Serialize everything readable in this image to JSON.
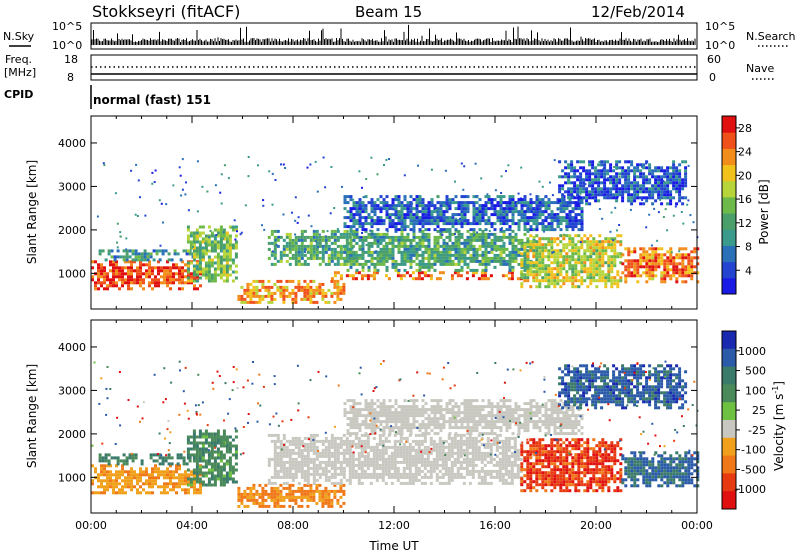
{
  "header": {
    "station": "Stokkseyri (fitACF)",
    "beam": "Beam 15",
    "date": "12/Feb/2014"
  },
  "top_panels": {
    "nsky_label": "N.Sky",
    "nsky_ticks": [
      "10^5",
      "10^0"
    ],
    "nsky_right_ticks": [
      "10^5",
      "10^0"
    ],
    "nsearch_label": "N.Search",
    "freq_label": "Freq.",
    "freq_unit": "[MHz]",
    "freq_ticks": [
      "18",
      "8"
    ],
    "nave_label": "Nave",
    "nave_ticks": [
      "60",
      "0"
    ],
    "cpid_label": "CPID",
    "cpid_value": "normal (fast) 151"
  },
  "chart_data": [
    {
      "type": "heatmap",
      "name": "power",
      "ylabel": "Slant Range [km]",
      "xlabel": "",
      "x_ticks": [
        "00:00",
        "04:00",
        "08:00",
        "12:00",
        "16:00",
        "20:00",
        "00:00"
      ],
      "x_range_hours": [
        0,
        24
      ],
      "y_ticks": [
        "1000",
        "2000",
        "3000",
        "4000"
      ],
      "y_range_km": [
        180,
        4620
      ],
      "colorbar": {
        "label": "Power [dB]",
        "ticks": [
          "4",
          "8",
          "12",
          "16",
          "20",
          "24",
          "28"
        ],
        "range": [
          0,
          30
        ],
        "colors": [
          "#1a1ae6",
          "#2244d0",
          "#2a70b8",
          "#3a9a8c",
          "#4a9e6a",
          "#6dba4a",
          "#b7d43a",
          "#f2c21c",
          "#f28c1a",
          "#f0501a",
          "#e01010"
        ]
      },
      "regions": [
        {
          "t0": 0.0,
          "t1": 4.3,
          "r0": 650,
          "r1": 1300,
          "level": 27
        },
        {
          "t0": 0.3,
          "t1": 4.0,
          "r0": 1300,
          "r1": 1550,
          "level": 10
        },
        {
          "t0": 3.8,
          "t1": 5.8,
          "r0": 800,
          "r1": 2100,
          "level": 15
        },
        {
          "t0": 5.8,
          "t1": 10.0,
          "r0": 300,
          "r1": 850,
          "level": 22
        },
        {
          "t0": 7.0,
          "t1": 10.5,
          "r0": 1200,
          "r1": 2000,
          "level": 12
        },
        {
          "t0": 9.5,
          "t1": 17.0,
          "r0": 880,
          "r1": 1050,
          "level": 25
        },
        {
          "t0": 10.0,
          "t1": 17.5,
          "r0": 1050,
          "r1": 2000,
          "level": 12
        },
        {
          "t0": 10.0,
          "t1": 19.5,
          "r0": 2000,
          "r1": 2800,
          "level": 6
        },
        {
          "t0": 17.0,
          "t1": 21.0,
          "r0": 700,
          "r1": 1900,
          "level": 18
        },
        {
          "t0": 21.0,
          "t1": 24.0,
          "r0": 800,
          "r1": 1600,
          "level": 24
        },
        {
          "t0": 18.5,
          "t1": 23.5,
          "r0": 2600,
          "r1": 3600,
          "level": 5
        }
      ]
    },
    {
      "type": "heatmap",
      "name": "velocity",
      "ylabel": "Slant Range [km]",
      "xlabel": "Time UT",
      "x_ticks": [
        "00:00",
        "04:00",
        "08:00",
        "12:00",
        "16:00",
        "20:00",
        "00:00"
      ],
      "x_range_hours": [
        0,
        24
      ],
      "y_ticks": [
        "1000",
        "2000",
        "3000",
        "4000"
      ],
      "y_range_km": [
        180,
        4620
      ],
      "colorbar": {
        "label": "Velocity [m s^-1]",
        "ticks": [
          "1000",
          "500",
          "100",
          "25",
          "-25",
          "-100",
          "-500",
          "-1000"
        ],
        "colors": [
          "#1a2ab0",
          "#2a5aa8",
          "#3a7a6a",
          "#4a8a5a",
          "#6ec040",
          "#c8c8c0",
          "#f0a01a",
          "#f07818",
          "#e83a10",
          "#e01010"
        ],
        "ground_scatter_color": "#c8c8c0"
      },
      "regions": [
        {
          "t0": 0.0,
          "t1": 4.3,
          "r0": 650,
          "r1": 1300,
          "vel": -80
        },
        {
          "t0": 0.3,
          "t1": 4.0,
          "r0": 1300,
          "r1": 1550,
          "vel": 300
        },
        {
          "t0": 3.8,
          "t1": 5.8,
          "r0": 800,
          "r1": 2100,
          "vel": 200
        },
        {
          "t0": 5.8,
          "t1": 10.0,
          "r0": 300,
          "r1": 850,
          "vel": -120
        },
        {
          "t0": 7.0,
          "t1": 17.0,
          "r0": 880,
          "r1": 2000,
          "vel": 0
        },
        {
          "t0": 10.0,
          "t1": 19.5,
          "r0": 2000,
          "r1": 2800,
          "vel": 0
        },
        {
          "t0": 17.0,
          "t1": 21.0,
          "r0": 700,
          "r1": 1900,
          "vel": -400
        },
        {
          "t0": 21.0,
          "t1": 24.0,
          "r0": 800,
          "r1": 1600,
          "vel": 600
        },
        {
          "t0": 18.5,
          "t1": 23.5,
          "r0": 2600,
          "r1": 3600,
          "vel": 700
        }
      ]
    }
  ]
}
